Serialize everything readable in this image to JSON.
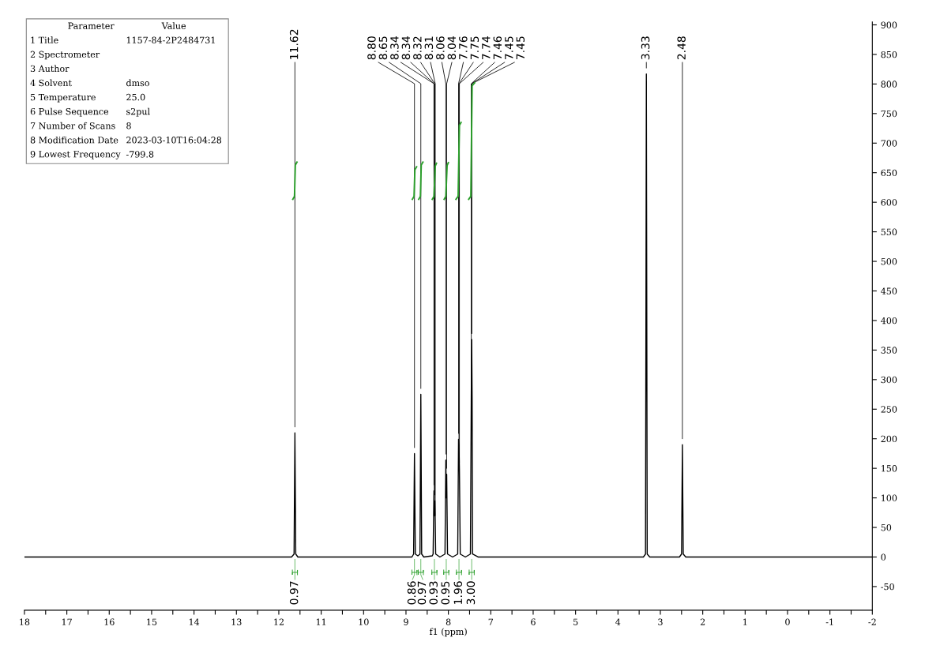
{
  "chart_data": {
    "type": "line",
    "xlabel": "f1 (ppm)",
    "xlim": [
      18,
      -2
    ],
    "ylim": [
      -90,
      905
    ],
    "xticks": [
      18,
      {
        "value": 17.5,
        "label": null
      },
      17,
      {
        "value": 16.5,
        "label": null
      },
      16,
      {
        "value": 15.5,
        "label": null
      },
      15,
      {
        "value": 14.5,
        "label": null
      },
      14,
      {
        "value": 13.5,
        "label": null
      },
      13,
      {
        "value": 12.5,
        "label": null
      },
      12,
      {
        "value": 11.5,
        "label": null
      },
      11,
      {
        "value": 10.5,
        "label": null
      },
      10,
      {
        "value": 9.5,
        "label": null
      },
      9,
      {
        "value": 8.5,
        "label": null
      },
      8,
      {
        "value": 7.5,
        "label": null
      },
      7,
      {
        "value": 6.5,
        "label": null
      },
      6,
      {
        "value": 5.5,
        "label": null
      },
      5,
      {
        "value": 4.5,
        "label": null
      },
      4,
      {
        "value": 3.5,
        "label": null
      },
      3,
      {
        "value": 2.5,
        "label": null
      },
      2,
      {
        "value": 1.5,
        "label": null
      },
      1,
      {
        "value": 0.5,
        "label": null
      },
      0,
      {
        "value": -0.5,
        "label": null
      },
      -1,
      {
        "value": -1.5,
        "label": null
      },
      -2
    ],
    "yticks": [
      -50,
      0,
      50,
      100,
      150,
      200,
      250,
      300,
      350,
      400,
      450,
      500,
      550,
      600,
      650,
      700,
      750,
      800,
      850,
      900
    ],
    "grid": false,
    "legend": false,
    "series": [
      {
        "color": "#000000",
        "x": [
          18,
          11.7,
          11.64,
          11.62,
          11.6,
          11.55,
          8.86,
          8.82,
          8.8,
          8.78,
          8.72,
          8.67,
          8.65,
          8.63,
          8.58,
          8.38,
          8.36,
          8.34,
          8.33,
          8.32,
          8.31,
          8.3,
          8.2,
          8.08,
          8.06,
          8.05,
          8.04,
          8.02,
          7.9,
          7.78,
          7.76,
          7.75,
          7.74,
          7.72,
          7.6,
          7.48,
          7.46,
          7.45,
          7.44,
          7.43,
          7.3,
          3.4,
          3.35,
          3.33,
          3.31,
          3.25,
          2.55,
          2.5,
          2.48,
          2.46,
          2.4,
          -2
        ],
        "values": [
          0,
          0,
          5,
          210,
          5,
          0,
          0,
          5,
          175,
          5,
          2,
          5,
          275,
          5,
          0,
          2,
          5,
          112,
          70,
          95,
          60,
          5,
          0,
          5,
          164,
          100,
          140,
          5,
          0,
          5,
          199,
          190,
          150,
          5,
          0,
          5,
          270,
          368,
          270,
          5,
          0,
          0,
          5,
          817,
          5,
          0,
          0,
          5,
          190,
          5,
          0,
          0
        ]
      },
      {
        "color": "#2ca02c",
        "x": [
          11.67,
          11.63,
          11.61,
          11.57,
          11.5,
          8.85,
          8.81,
          8.79,
          8.75,
          8.72,
          8.7,
          8.66,
          8.64,
          8.6,
          8.5,
          8.38,
          8.34,
          8.31,
          8.28,
          8.2,
          8.1,
          8.06,
          8.03,
          8.0,
          7.9,
          7.82,
          7.77,
          7.74,
          7.7,
          7.6,
          7.52,
          7.47,
          7.44,
          7.38
        ],
        "values": [
          605,
          610,
          663,
          668,
          null,
          605,
          610,
          655,
          660,
          null,
          605,
          610,
          663,
          668,
          null,
          605,
          610,
          661,
          666,
          null,
          605,
          610,
          662,
          667,
          null,
          605,
          610,
          730,
          735,
          null,
          605,
          610,
          797,
          802
        ]
      }
    ],
    "annotations": [
      "Parameter\tValue",
      "1 Title\t1157-84-2P2484731",
      "2 Spectrometer",
      "3 Author",
      "4 Solvent\tdmso",
      "5 Temperature\t25.0",
      "6 Pulse Sequence\ts2pul",
      "7 Number of Scans\t8",
      "8 Modification Date\t2023-03-10T16:04:28",
      "9 Lowest Frequency\t-799.8",
      {
        "text": "11.62",
        "x": 11.62,
        "y": 210
      },
      {
        "text": "8.80",
        "x": 8.8,
        "y": 175
      },
      {
        "text": "8.65",
        "x": 8.65,
        "y": 275
      },
      {
        "text": "8.34",
        "x": 8.34,
        "y": 112
      },
      {
        "text": "8.34",
        "x": 8.335,
        "y": 90
      },
      {
        "text": "8.32",
        "x": 8.32,
        "y": 95
      },
      {
        "text": "8.31",
        "x": 8.31,
        "y": 60
      },
      {
        "text": "8.06",
        "x": 8.06,
        "y": 164
      },
      {
        "text": "8.04",
        "x": 8.04,
        "y": 140
      },
      {
        "text": "7.76",
        "x": 7.76,
        "y": 199
      },
      {
        "text": "7.75",
        "x": 7.75,
        "y": 190
      },
      {
        "text": "7.74",
        "x": 7.74,
        "y": 150
      },
      {
        "text": "7.46",
        "x": 7.46,
        "y": 270
      },
      {
        "text": "7.45",
        "x": 7.452,
        "y": 368
      },
      {
        "text": "7.45",
        "x": 7.45,
        "y": 368
      },
      {
        "text": "3.33",
        "x": 3.33,
        "y": 817
      },
      {
        "text": "2.48",
        "x": 2.48,
        "y": 190
      },
      {
        "text": "0.97",
        "x": 11.62,
        "y": 0
      },
      {
        "text": "0.86",
        "x": 8.8,
        "y": 0
      },
      {
        "text": "0.97",
        "x": 8.65,
        "y": 0
      },
      {
        "text": "0.93",
        "x": 8.33,
        "y": 0
      },
      {
        "text": "0.95",
        "x": 8.05,
        "y": 0
      },
      {
        "text": "1.96",
        "x": 7.75,
        "y": 0
      },
      {
        "text": "3.00",
        "x": 7.45,
        "y": 0
      }
    ]
  }
}
